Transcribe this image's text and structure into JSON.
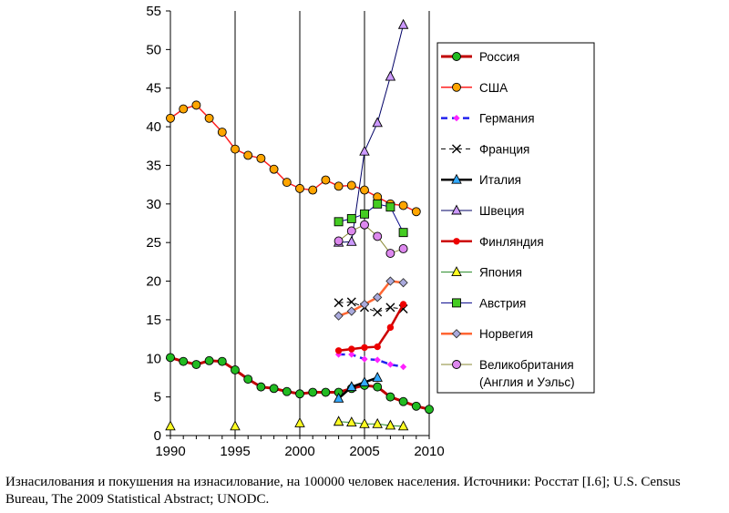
{
  "caption": "Изнасилования и покушения на изнасилование, на 100000 человек населения. Источники: Росстат [I.6]; U.S. Census Bureau, The 2009 Statistical Abstract; UNODC.",
  "chart_data": {
    "type": "line",
    "xlim": [
      1990,
      2010
    ],
    "ylim": [
      0,
      55
    ],
    "xticks": [
      1990,
      1995,
      2000,
      2005,
      2010
    ],
    "yticks": [
      0,
      5,
      10,
      15,
      20,
      25,
      30,
      35,
      40,
      45,
      50,
      55
    ],
    "grid": "vertical",
    "legend_position": "right",
    "series": [
      {
        "name": "Россия",
        "line_color": "#c00000",
        "marker": "circle",
        "marker_color": "#22bb22",
        "line_width": 3,
        "x": [
          1990,
          1991,
          1992,
          1993,
          1994,
          1995,
          1996,
          1997,
          1998,
          1999,
          2000,
          2001,
          2002,
          2003,
          2004,
          2005,
          2006,
          2007,
          2008,
          2009,
          2010
        ],
        "y": [
          10.1,
          9.6,
          9.2,
          9.7,
          9.6,
          8.5,
          7.3,
          6.3,
          6.1,
          5.7,
          5.4,
          5.6,
          5.6,
          5.6,
          6.1,
          6.5,
          6.3,
          5.0,
          4.4,
          3.8,
          3.4
        ]
      },
      {
        "name": "США",
        "line_color": "#ff2020",
        "marker": "circle",
        "marker_color": "#ffa500",
        "line_width": 1.5,
        "x": [
          1990,
          1991,
          1992,
          1993,
          1994,
          1995,
          1996,
          1997,
          1998,
          1999,
          2000,
          2001,
          2002,
          2003,
          2004,
          2005,
          2006,
          2007,
          2008,
          2009
        ],
        "y": [
          41.1,
          42.3,
          42.8,
          41.1,
          39.3,
          37.1,
          36.3,
          35.9,
          34.5,
          32.8,
          32.0,
          31.8,
          33.1,
          32.3,
          32.4,
          31.8,
          30.9,
          30.0,
          29.8,
          29.0
        ]
      },
      {
        "name": "Германия",
        "line_color": "#2222ee",
        "marker": "diamond",
        "marker_color": "#ff22ff",
        "line_width": 2.5,
        "dash": "7,5",
        "x": [
          2003,
          2004,
          2005,
          2006,
          2007,
          2008
        ],
        "y": [
          10.5,
          10.5,
          9.9,
          9.8,
          9.2,
          8.9
        ]
      },
      {
        "name": "Франция",
        "line_color": "#000000",
        "marker": "x",
        "marker_color": "#000000",
        "line_width": 1,
        "dash": "5,4",
        "x": [
          2003,
          2004,
          2005,
          2006,
          2007,
          2008
        ],
        "y": [
          17.2,
          17.3,
          16.6,
          16.0,
          16.6,
          16.4
        ]
      },
      {
        "name": "Италия",
        "line_color": "#000000",
        "marker": "triangle",
        "marker_color": "#33aaff",
        "line_width": 2.5,
        "x": [
          2003,
          2004,
          2005,
          2006
        ],
        "y": [
          4.8,
          6.3,
          6.9,
          7.5
        ]
      },
      {
        "name": "Швеция",
        "line_color": "#000066",
        "marker": "triangle",
        "marker_color": "#cc99ff",
        "line_width": 1,
        "x": [
          2003,
          2004,
          2005,
          2006,
          2007,
          2008
        ],
        "y": [
          25.0,
          25.1,
          36.8,
          40.5,
          46.5,
          53.2
        ]
      },
      {
        "name": "Финляндия",
        "line_color": "#cc0000",
        "marker": "circle-small",
        "marker_color": "#ee0000",
        "line_width": 2.5,
        "x": [
          2003,
          2004,
          2005,
          2006,
          2007,
          2008
        ],
        "y": [
          11.0,
          11.2,
          11.4,
          11.5,
          14.0,
          17.0
        ]
      },
      {
        "name": "Япония",
        "line_color": "#228822",
        "marker": "triangle",
        "marker_color": "#ffff22",
        "line_width": 1,
        "x": [
          1990,
          1995,
          2000,
          2003,
          2004,
          2005,
          2006,
          2007,
          2008
        ],
        "y": [
          1.2,
          1.2,
          1.6,
          1.8,
          1.7,
          1.5,
          1.5,
          1.3,
          1.2
        ],
        "segments": [
          [
            3,
            8
          ]
        ]
      },
      {
        "name": "Австрия",
        "line_color": "#000088",
        "marker": "square",
        "marker_color": "#44cc22",
        "line_width": 1,
        "x": [
          2003,
          2004,
          2005,
          2006,
          2007,
          2008
        ],
        "y": [
          27.7,
          28.1,
          28.7,
          30.0,
          29.6,
          26.3
        ]
      },
      {
        "name": "Норвегия",
        "line_color": "#ff6633",
        "marker": "diamond",
        "marker_color": "#aaaadd",
        "line_width": 2.5,
        "x": [
          2003,
          2004,
          2005,
          2006,
          2007,
          2008
        ],
        "y": [
          15.5,
          16.1,
          17.0,
          17.9,
          20.0,
          19.8
        ]
      },
      {
        "name": "Великобритания\n(Англия и Уэльс)",
        "line_color": "#888833",
        "marker": "circle",
        "marker_color": "#dd88ee",
        "line_width": 1,
        "x": [
          2003,
          2004,
          2005,
          2006,
          2007,
          2008
        ],
        "y": [
          25.2,
          26.5,
          27.3,
          25.8,
          23.6,
          24.2
        ]
      }
    ]
  }
}
